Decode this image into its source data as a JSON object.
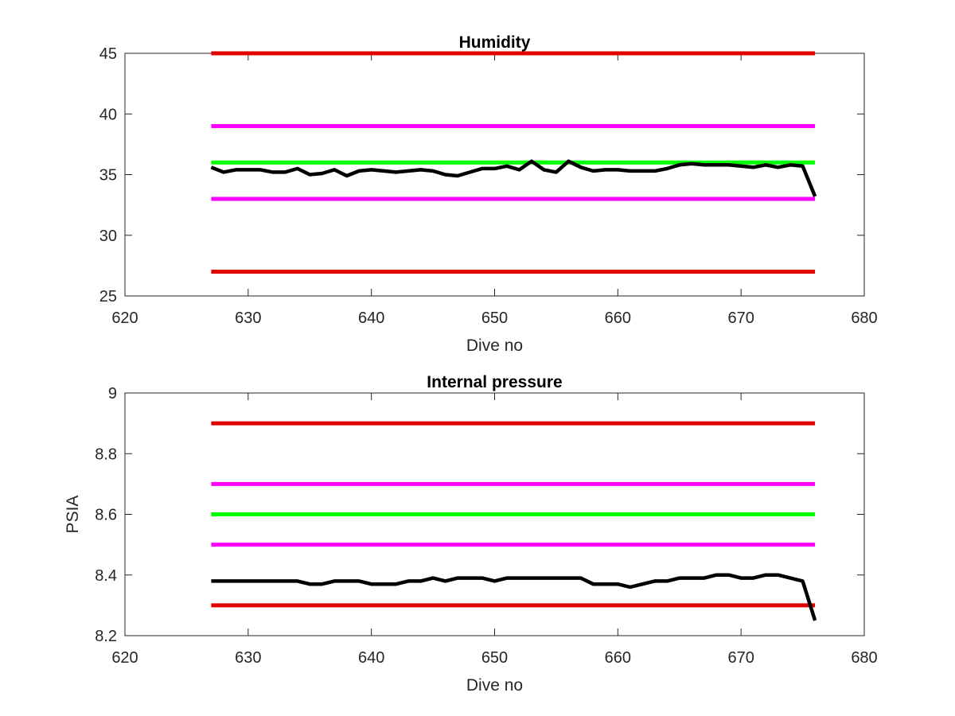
{
  "chart_data": [
    {
      "type": "line",
      "title": "Humidity",
      "xlabel": "Dive no",
      "ylabel": "",
      "xlim": [
        620,
        680
      ],
      "ylim": [
        25,
        45
      ],
      "xticks": [
        620,
        630,
        640,
        650,
        660,
        670,
        680
      ],
      "yticks": [
        25,
        30,
        35,
        40,
        45
      ],
      "grid": false,
      "legend": "none",
      "reference_lines": [
        {
          "y": 45,
          "x_range": [
            627,
            676
          ],
          "color": "#e00000"
        },
        {
          "y": 39,
          "x_range": [
            627,
            676
          ],
          "color": "#ff00ff"
        },
        {
          "y": 36,
          "x_range": [
            627,
            676
          ],
          "color": "#00ff00"
        },
        {
          "y": 33,
          "x_range": [
            627,
            676
          ],
          "color": "#ff00ff"
        },
        {
          "y": 27,
          "x_range": [
            627,
            676
          ],
          "color": "#e00000"
        }
      ],
      "series": [
        {
          "color": "#000000",
          "x": [
            627,
            628,
            629,
            630,
            631,
            632,
            633,
            634,
            635,
            636,
            637,
            638,
            639,
            640,
            641,
            642,
            643,
            644,
            645,
            646,
            647,
            648,
            649,
            650,
            651,
            652,
            653,
            654,
            655,
            656,
            657,
            658,
            659,
            660,
            661,
            662,
            663,
            664,
            665,
            666,
            667,
            668,
            669,
            670,
            671,
            672,
            673,
            674,
            675,
            676
          ],
          "y": [
            35.6,
            35.2,
            35.4,
            35.4,
            35.4,
            35.2,
            35.2,
            35.5,
            35.0,
            35.1,
            35.4,
            34.9,
            35.3,
            35.4,
            35.3,
            35.2,
            35.3,
            35.4,
            35.3,
            35.0,
            34.9,
            35.2,
            35.5,
            35.5,
            35.7,
            35.4,
            36.1,
            35.4,
            35.2,
            36.1,
            35.6,
            35.3,
            35.4,
            35.4,
            35.3,
            35.3,
            35.3,
            35.5,
            35.8,
            35.9,
            35.8,
            35.8,
            35.8,
            35.7,
            35.6,
            35.8,
            35.6,
            35.8,
            35.7,
            33.2
          ]
        }
      ]
    },
    {
      "type": "line",
      "title": "Internal pressure",
      "xlabel": "Dive no",
      "ylabel": "PSIA",
      "xlim": [
        620,
        680
      ],
      "ylim": [
        8.2,
        9
      ],
      "xticks": [
        620,
        630,
        640,
        650,
        660,
        670,
        680
      ],
      "yticks": [
        8.2,
        8.4,
        8.6,
        8.8,
        9
      ],
      "grid": false,
      "legend": "none",
      "reference_lines": [
        {
          "y": 8.9,
          "x_range": [
            627,
            676
          ],
          "color": "#e00000"
        },
        {
          "y": 8.7,
          "x_range": [
            627,
            676
          ],
          "color": "#ff00ff"
        },
        {
          "y": 8.6,
          "x_range": [
            627,
            676
          ],
          "color": "#00ff00"
        },
        {
          "y": 8.5,
          "x_range": [
            627,
            676
          ],
          "color": "#ff00ff"
        },
        {
          "y": 8.3,
          "x_range": [
            627,
            676
          ],
          "color": "#e00000"
        }
      ],
      "series": [
        {
          "color": "#000000",
          "x": [
            627,
            628,
            629,
            630,
            631,
            632,
            633,
            634,
            635,
            636,
            637,
            638,
            639,
            640,
            641,
            642,
            643,
            644,
            645,
            646,
            647,
            648,
            649,
            650,
            651,
            652,
            653,
            654,
            655,
            656,
            657,
            658,
            659,
            660,
            661,
            662,
            663,
            664,
            665,
            666,
            667,
            668,
            669,
            670,
            671,
            672,
            673,
            674,
            675,
            676
          ],
          "y": [
            8.38,
            8.38,
            8.38,
            8.38,
            8.38,
            8.38,
            8.38,
            8.38,
            8.37,
            8.37,
            8.38,
            8.38,
            8.38,
            8.37,
            8.37,
            8.37,
            8.38,
            8.38,
            8.39,
            8.38,
            8.39,
            8.39,
            8.39,
            8.38,
            8.39,
            8.39,
            8.39,
            8.39,
            8.39,
            8.39,
            8.39,
            8.37,
            8.37,
            8.37,
            8.36,
            8.37,
            8.38,
            8.38,
            8.39,
            8.39,
            8.39,
            8.4,
            8.4,
            8.39,
            8.39,
            8.4,
            8.4,
            8.39,
            8.38,
            8.25
          ]
        }
      ]
    }
  ]
}
